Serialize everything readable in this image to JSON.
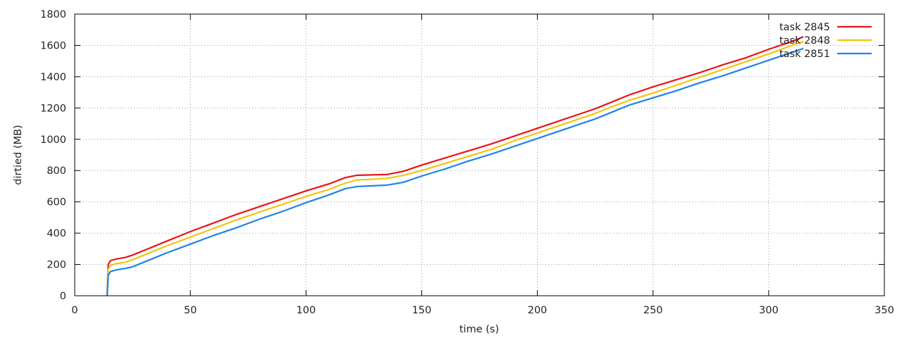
{
  "chart_data": {
    "type": "line",
    "xlabel": "time (s)",
    "ylabel": "dirtied (MB)",
    "xlim": [
      0,
      350
    ],
    "ylim": [
      0,
      1800
    ],
    "xticks": [
      0,
      50,
      100,
      150,
      200,
      250,
      300,
      350
    ],
    "yticks": [
      0,
      200,
      400,
      600,
      800,
      1000,
      1200,
      1400,
      1600,
      1800
    ],
    "grid": true,
    "legend_position": "top-right",
    "series": [
      {
        "name": "task 2845",
        "color": "#e8141b",
        "points": [
          [
            14,
            0
          ],
          [
            14.5,
            200
          ],
          [
            15.5,
            225
          ],
          [
            18,
            235
          ],
          [
            22,
            245
          ],
          [
            25,
            260
          ],
          [
            30,
            290
          ],
          [
            40,
            350
          ],
          [
            50,
            410
          ],
          [
            60,
            465
          ],
          [
            70,
            520
          ],
          [
            80,
            570
          ],
          [
            90,
            620
          ],
          [
            100,
            670
          ],
          [
            110,
            715
          ],
          [
            117,
            755
          ],
          [
            122,
            770
          ],
          [
            128,
            772
          ],
          [
            135,
            775
          ],
          [
            142,
            795
          ],
          [
            150,
            835
          ],
          [
            160,
            880
          ],
          [
            170,
            925
          ],
          [
            180,
            970
          ],
          [
            190,
            1020
          ],
          [
            200,
            1070
          ],
          [
            210,
            1120
          ],
          [
            220,
            1170
          ],
          [
            225,
            1195
          ],
          [
            230,
            1225
          ],
          [
            240,
            1285
          ],
          [
            250,
            1335
          ],
          [
            260,
            1380
          ],
          [
            270,
            1425
          ],
          [
            280,
            1475
          ],
          [
            290,
            1520
          ],
          [
            300,
            1575
          ],
          [
            310,
            1625
          ],
          [
            315,
            1655
          ]
        ]
      },
      {
        "name": "task 2848",
        "color": "#f5c40c",
        "points": [
          [
            14,
            0
          ],
          [
            14.5,
            170
          ],
          [
            15.5,
            195
          ],
          [
            18,
            205
          ],
          [
            22,
            215
          ],
          [
            25,
            230
          ],
          [
            30,
            260
          ],
          [
            40,
            320
          ],
          [
            50,
            375
          ],
          [
            60,
            430
          ],
          [
            70,
            485
          ],
          [
            80,
            535
          ],
          [
            90,
            585
          ],
          [
            100,
            635
          ],
          [
            110,
            680
          ],
          [
            117,
            720
          ],
          [
            122,
            740
          ],
          [
            128,
            744
          ],
          [
            135,
            750
          ],
          [
            142,
            770
          ],
          [
            150,
            800
          ],
          [
            160,
            845
          ],
          [
            170,
            890
          ],
          [
            180,
            935
          ],
          [
            190,
            990
          ],
          [
            200,
            1040
          ],
          [
            210,
            1090
          ],
          [
            220,
            1140
          ],
          [
            225,
            1165
          ],
          [
            230,
            1195
          ],
          [
            240,
            1250
          ],
          [
            250,
            1295
          ],
          [
            260,
            1345
          ],
          [
            270,
            1395
          ],
          [
            280,
            1445
          ],
          [
            290,
            1495
          ],
          [
            300,
            1545
          ],
          [
            310,
            1600
          ],
          [
            315,
            1625
          ]
        ]
      },
      {
        "name": "task 2851",
        "color": "#1f83e8",
        "points": [
          [
            14,
            0
          ],
          [
            14.5,
            130
          ],
          [
            15.5,
            155
          ],
          [
            18,
            165
          ],
          [
            22,
            175
          ],
          [
            25,
            185
          ],
          [
            30,
            215
          ],
          [
            40,
            275
          ],
          [
            50,
            330
          ],
          [
            60,
            385
          ],
          [
            70,
            435
          ],
          [
            80,
            490
          ],
          [
            90,
            540
          ],
          [
            100,
            595
          ],
          [
            110,
            645
          ],
          [
            117,
            685
          ],
          [
            122,
            698
          ],
          [
            128,
            702
          ],
          [
            135,
            707
          ],
          [
            142,
            725
          ],
          [
            150,
            765
          ],
          [
            160,
            810
          ],
          [
            170,
            860
          ],
          [
            180,
            905
          ],
          [
            190,
            955
          ],
          [
            200,
            1005
          ],
          [
            210,
            1055
          ],
          [
            220,
            1105
          ],
          [
            225,
            1130
          ],
          [
            230,
            1160
          ],
          [
            240,
            1220
          ],
          [
            250,
            1265
          ],
          [
            260,
            1310
          ],
          [
            270,
            1360
          ],
          [
            280,
            1405
          ],
          [
            290,
            1455
          ],
          [
            300,
            1505
          ],
          [
            310,
            1555
          ],
          [
            315,
            1580
          ]
        ]
      }
    ]
  }
}
